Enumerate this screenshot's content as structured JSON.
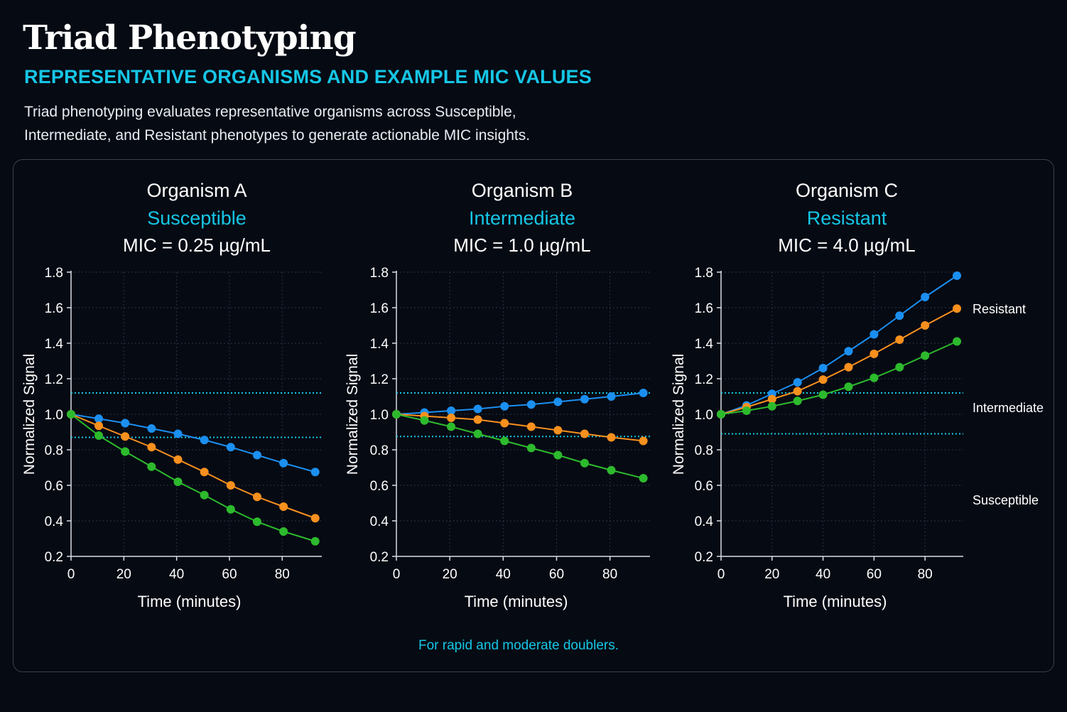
{
  "header": {
    "title": "Triad Phenotyping",
    "subtitle": "REPRESENTATIVE ORGANISMS AND EXAMPLE MIC VALUES",
    "description_line1": "Triad phenotyping evaluates representative organisms across Susceptible,",
    "description_line2": "Intermediate, and Resistant phenotypes to generate actionable MIC insights."
  },
  "footnote": "For rapid and moderate doublers.",
  "colors": {
    "background": "#060a13",
    "accent": "#16c6e6",
    "series_blue": "#1b8ff0",
    "series_orange": "#f7901e",
    "series_green": "#2dba2d",
    "threshold": "#16c6e6"
  },
  "side_labels": [
    "Resistant",
    "Intermediate",
    "Susceptible"
  ],
  "chart_data": [
    {
      "type": "line",
      "title": "Organism A",
      "phenotype": "Susceptible",
      "mic": "MIC = 0.25 µg/mL",
      "xlabel": "Time (minutes)",
      "ylabel": "Normalized Signal",
      "xlim": [
        0,
        95
      ],
      "ylim": [
        0.2,
        1.8
      ],
      "xticks": [
        "0",
        "20",
        "40",
        "60",
        "80"
      ],
      "yticks": [
        "0.2",
        "0.4",
        "0.6",
        "0.8",
        "1.0",
        "1.2",
        "1.4",
        "1.6",
        "1.8"
      ],
      "grid": true,
      "thresholds": [
        1.12,
        0.87
      ],
      "x": [
        0,
        10.5,
        20.5,
        30.5,
        40.5,
        50.5,
        60.5,
        70.5,
        80.5,
        92.5
      ],
      "series": [
        {
          "color": "#1b8ff0",
          "values": [
            1.0,
            0.975,
            0.95,
            0.92,
            0.89,
            0.855,
            0.815,
            0.77,
            0.725,
            0.675
          ]
        },
        {
          "color": "#f7901e",
          "values": [
            1.0,
            0.935,
            0.875,
            0.815,
            0.745,
            0.675,
            0.6,
            0.535,
            0.48,
            0.415
          ]
        },
        {
          "color": "#2dba2d",
          "values": [
            1.0,
            0.88,
            0.79,
            0.705,
            0.62,
            0.545,
            0.465,
            0.395,
            0.34,
            0.285
          ]
        }
      ]
    },
    {
      "type": "line",
      "title": "Organism B",
      "phenotype": "Intermediate",
      "mic": "MIC = 1.0 µg/mL",
      "xlabel": "Time (minutes)",
      "ylabel": "Normalized Signal",
      "xlim": [
        0,
        95
      ],
      "ylim": [
        0.2,
        1.8
      ],
      "xticks": [
        "0",
        "20",
        "40",
        "60",
        "80"
      ],
      "yticks": [
        "0.2",
        "0.4",
        "0.6",
        "0.8",
        "1.0",
        "1.2",
        "1.4",
        "1.6",
        "1.8"
      ],
      "grid": true,
      "thresholds": [
        1.12,
        0.875
      ],
      "x": [
        0,
        10.5,
        20.5,
        30.5,
        40.5,
        50.5,
        60.5,
        70.5,
        80.5,
        92.5
      ],
      "series": [
        {
          "color": "#1b8ff0",
          "values": [
            1.0,
            1.01,
            1.02,
            1.03,
            1.045,
            1.055,
            1.07,
            1.085,
            1.1,
            1.12
          ]
        },
        {
          "color": "#f7901e",
          "values": [
            1.0,
            0.99,
            0.98,
            0.97,
            0.95,
            0.93,
            0.91,
            0.89,
            0.87,
            0.85
          ]
        },
        {
          "color": "#2dba2d",
          "values": [
            1.0,
            0.965,
            0.93,
            0.89,
            0.85,
            0.81,
            0.77,
            0.725,
            0.685,
            0.64
          ]
        }
      ]
    },
    {
      "type": "line",
      "title": "Organism C",
      "phenotype": "Resistant",
      "mic": "MIC = 4.0 µg/mL",
      "xlabel": "Time (minutes)",
      "ylabel": "Normalized Signal",
      "xlim": [
        0,
        95
      ],
      "ylim": [
        0.2,
        1.8
      ],
      "xticks": [
        "0",
        "20",
        "40",
        "60",
        "80"
      ],
      "yticks": [
        "0.2",
        "0.4",
        "0.6",
        "0.8",
        "1.0",
        "1.2",
        "1.4",
        "1.6",
        "1.8"
      ],
      "grid": true,
      "thresholds": [
        1.12,
        0.89
      ],
      "x": [
        0,
        10,
        20,
        30,
        40,
        50,
        60,
        70,
        80,
        92.5
      ],
      "series": [
        {
          "color": "#1b8ff0",
          "values": [
            1.0,
            1.05,
            1.115,
            1.18,
            1.26,
            1.355,
            1.45,
            1.555,
            1.66,
            1.78
          ]
        },
        {
          "color": "#f7901e",
          "values": [
            1.0,
            1.04,
            1.085,
            1.13,
            1.195,
            1.265,
            1.34,
            1.42,
            1.5,
            1.595
          ]
        },
        {
          "color": "#2dba2d",
          "values": [
            1.0,
            1.02,
            1.045,
            1.075,
            1.11,
            1.155,
            1.205,
            1.265,
            1.33,
            1.41
          ]
        }
      ]
    }
  ]
}
